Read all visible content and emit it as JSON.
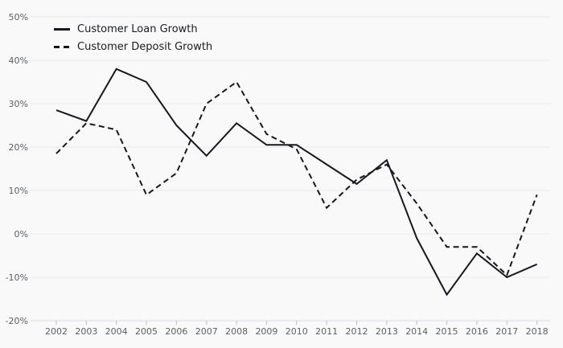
{
  "chart_data": {
    "type": "line",
    "title": "",
    "xlabel": "",
    "ylabel": "",
    "ylim": [
      -20,
      50
    ],
    "grid": "horizontal",
    "legend_position": "top-left",
    "categories": [
      "2002",
      "2003",
      "2004",
      "2005",
      "2006",
      "2007",
      "2008",
      "2009",
      "2010",
      "2011",
      "2012",
      "2013",
      "2014",
      "2015",
      "2016",
      "2017",
      "2018"
    ],
    "yticks": [
      {
        "value": 50,
        "label": "50%"
      },
      {
        "value": 40,
        "label": "40%"
      },
      {
        "value": 30,
        "label": "30%"
      },
      {
        "value": 20,
        "label": "20%"
      },
      {
        "value": 10,
        "label": "10%"
      },
      {
        "value": 0,
        "label": "0%"
      },
      {
        "value": -10,
        "label": "-10%"
      },
      {
        "value": -20,
        "label": "-20%"
      }
    ],
    "series": [
      {
        "name": "Customer Loan Growth",
        "style": "solid",
        "values": [
          28.5,
          26,
          38,
          35,
          25,
          18,
          25.5,
          20.5,
          20.5,
          16,
          11.5,
          17,
          -1,
          -14,
          -4.5,
          -10,
          -7
        ]
      },
      {
        "name": "Customer Deposit Growth",
        "style": "dashed",
        "values": [
          18.5,
          25.5,
          24,
          9,
          14,
          30,
          35,
          23,
          19.5,
          6,
          12.5,
          16,
          7,
          -3,
          -3,
          -9.5,
          9
        ]
      }
    ],
    "colors": {
      "background": "#f9f9fa",
      "grid": "#e9e9ec",
      "axis": "#d6dae3",
      "tick": "#b6bfd3",
      "label": "#5c6066",
      "line": "#16181d"
    }
  }
}
